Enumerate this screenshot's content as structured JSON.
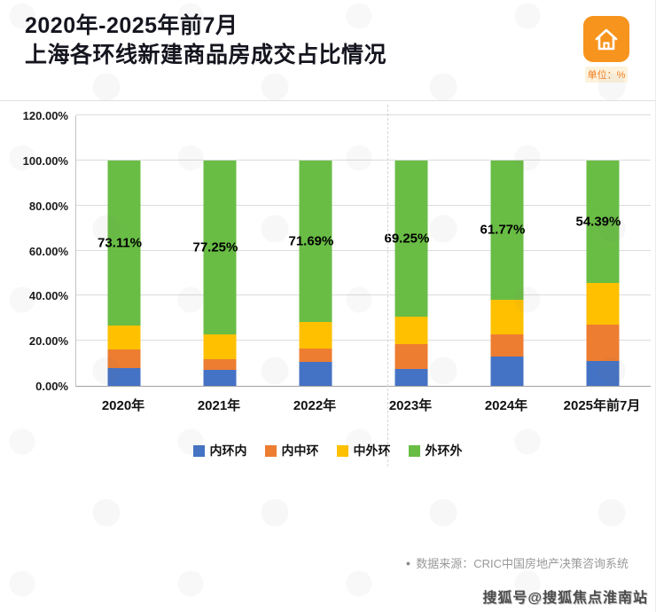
{
  "header": {
    "title_line1": "2020年-2025年前7月",
    "title_line2": "上海各环线新建商品房成交占比情况",
    "unit_label": "单位：%",
    "logo_icon": "house-icon",
    "logo_color": "#F7941E"
  },
  "chart_data": {
    "type": "bar",
    "subtype": "stacked-100",
    "title": "2020年-2025年前7月上海各环线新建商品房成交占比情况",
    "categories": [
      "2020年",
      "2021年",
      "2022年",
      "2023年",
      "2024年",
      "2025年前7月"
    ],
    "series": [
      {
        "name": "内环内",
        "slug": "inner-ring",
        "color": "#4472C4",
        "values": [
          8.0,
          7.0,
          10.5,
          7.5,
          13.0,
          11.0
        ]
      },
      {
        "name": "内中环",
        "slug": "inner-middle-ring",
        "color": "#ED7D31",
        "values": [
          8.0,
          5.0,
          6.0,
          11.0,
          10.0,
          16.0
        ]
      },
      {
        "name": "中外环",
        "slug": "middle-outer-ring",
        "color": "#FFC000",
        "values": [
          10.89,
          10.75,
          11.81,
          12.25,
          15.23,
          18.61
        ]
      },
      {
        "name": "外环外",
        "slug": "outer-ring",
        "color": "#69BD45",
        "values": [
          73.11,
          77.25,
          71.69,
          69.25,
          61.77,
          54.39
        ]
      }
    ],
    "data_labels": [
      "73.11%",
      "77.25%",
      "71.69%",
      "69.25%",
      "61.77%",
      "54.39%"
    ],
    "y_ticks": [
      "120.00%",
      "100.00%",
      "80.00%",
      "60.00%",
      "40.00%",
      "20.00%",
      "0.00%"
    ],
    "ylim": [
      0,
      120
    ],
    "grid": true,
    "legend_position": "bottom"
  },
  "footer": {
    "source_bullet": "●",
    "source_text": "数据来源：CRIC中国房地产决策咨询系统"
  },
  "watermark": {
    "text": "搜狐号@搜狐焦点淮南站"
  }
}
